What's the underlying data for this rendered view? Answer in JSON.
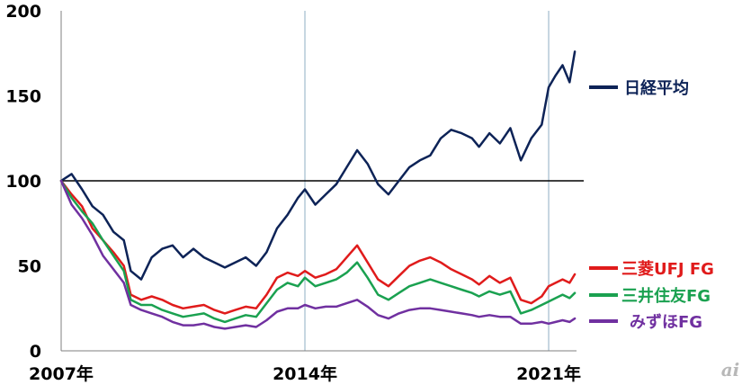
{
  "chart_data": {
    "type": "line",
    "title": "",
    "xlabel": "",
    "ylabel": "",
    "ylim": [
      0,
      200
    ],
    "xlim": [
      2007.0,
      2021.8
    ],
    "yticks": [
      "0",
      "50",
      "100",
      "150",
      "200"
    ],
    "xtick_labels": [
      {
        "label": "2007年",
        "x": 2007.0
      },
      {
        "label": "2014年",
        "x": 2014.0
      },
      {
        "label": "2021年",
        "x": 2021.0
      }
    ],
    "grid": "vertical lines at 2014 and 2021",
    "reference_line": {
      "y": 100
    },
    "legend_placement": "right",
    "x": [
      2007.0,
      2007.3,
      2007.6,
      2007.9,
      2008.2,
      2008.5,
      2008.8,
      2009.0,
      2009.3,
      2009.6,
      2009.9,
      2010.2,
      2010.5,
      2010.8,
      2011.1,
      2011.4,
      2011.7,
      2012.0,
      2012.3,
      2012.6,
      2012.9,
      2013.2,
      2013.5,
      2013.8,
      2014.0,
      2014.3,
      2014.6,
      2014.9,
      2015.2,
      2015.5,
      2015.8,
      2016.1,
      2016.4,
      2016.7,
      2017.0,
      2017.3,
      2017.6,
      2017.9,
      2018.2,
      2018.5,
      2018.8,
      2019.0,
      2019.3,
      2019.6,
      2019.9,
      2020.2,
      2020.5,
      2020.8,
      2021.0,
      2021.2,
      2021.4,
      2021.6,
      2021.75
    ],
    "series": [
      {
        "name": "日経平均",
        "color": "#0d2357",
        "values": [
          100,
          104,
          95,
          85,
          80,
          70,
          65,
          47,
          42,
          55,
          60,
          62,
          55,
          60,
          55,
          52,
          49,
          52,
          55,
          50,
          58,
          72,
          80,
          90,
          95,
          86,
          92,
          98,
          108,
          118,
          110,
          98,
          92,
          100,
          108,
          112,
          115,
          125,
          130,
          128,
          125,
          120,
          128,
          122,
          131,
          112,
          125,
          133,
          155,
          162,
          168,
          158,
          176
        ]
      },
      {
        "name": "三菱UFJ FG",
        "color": "#e01b1b",
        "values": [
          100,
          92,
          85,
          72,
          65,
          58,
          50,
          33,
          30,
          32,
          30,
          27,
          25,
          26,
          27,
          24,
          22,
          24,
          26,
          25,
          33,
          43,
          46,
          44,
          47,
          43,
          45,
          48,
          55,
          62,
          52,
          42,
          38,
          44,
          50,
          53,
          55,
          52,
          48,
          45,
          42,
          39,
          44,
          40,
          43,
          30,
          28,
          32,
          38,
          40,
          42,
          40,
          45
        ]
      },
      {
        "name": "三井住友FG",
        "color": "#1aa150",
        "values": [
          100,
          90,
          82,
          75,
          65,
          56,
          47,
          30,
          27,
          27,
          24,
          22,
          20,
          21,
          22,
          19,
          17,
          19,
          21,
          20,
          28,
          36,
          40,
          38,
          43,
          38,
          40,
          42,
          46,
          52,
          43,
          33,
          30,
          34,
          38,
          40,
          42,
          40,
          38,
          36,
          34,
          32,
          35,
          33,
          35,
          22,
          24,
          27,
          29,
          31,
          33,
          31,
          34
        ]
      },
      {
        "name": "みずほFG",
        "color": "#7030a0",
        "values": [
          100,
          86,
          78,
          68,
          56,
          48,
          40,
          27,
          24,
          22,
          20,
          17,
          15,
          15,
          16,
          14,
          13,
          14,
          15,
          14,
          18,
          23,
          25,
          25,
          27,
          25,
          26,
          26,
          28,
          30,
          26,
          21,
          19,
          22,
          24,
          25,
          25,
          24,
          23,
          22,
          21,
          20,
          21,
          20,
          20,
          16,
          16,
          17,
          16,
          17,
          18,
          17,
          19
        ]
      }
    ]
  },
  "watermark": "ai",
  "colors": {
    "axis": "#7f7f7f",
    "grid": "#8eaec3",
    "reference": "#000000"
  }
}
